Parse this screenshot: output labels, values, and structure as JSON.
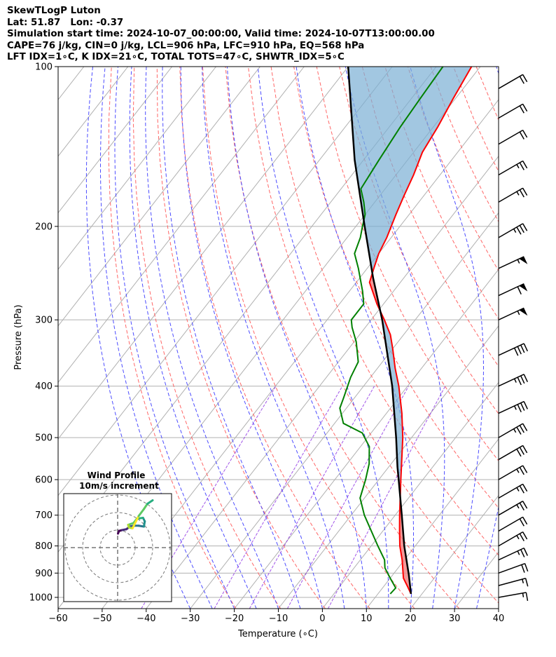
{
  "header": {
    "line1": "SkewTLogP Luton",
    "line2": "Lat: 51.87   Lon: -0.37",
    "line3": "Simulation start time: 2024-10-07_00:00:00, Valid time: 2024-10-07T13:00:00.00",
    "line4": "CAPE=76 j/kg, CIN=0 j/kg, LCL=906 hPa, LFC=910 hPa, EQ=568 hPa",
    "line5": "LFT IDX=1∘C, K IDX=21∘C, TOTAL TOTS=47∘C, SHWTR_IDX=5∘C"
  },
  "colors": {
    "temperature": "#ff0000",
    "dewpoint": "#008000",
    "parcel": "#000000",
    "cape_fill": "#7bafd4",
    "cin_fill": "#f08080",
    "dry_adiabat": "#ff6666",
    "moist_adiabat": "#4d4dff",
    "mixing_ratio": "#8a2be2",
    "isotherm": "#b0b0b0"
  },
  "chart_data": {
    "type": "skewt",
    "xlabel": "Temperature (∘C)",
    "ylabel": "Pressure (hPa)",
    "xlim": [
      -60,
      40
    ],
    "ylim": [
      1050,
      100
    ],
    "x_ticks": [
      "−60",
      "−50",
      "−40",
      "−30",
      "−20",
      "−10",
      "0",
      "10",
      "20",
      "30",
      "40"
    ],
    "y_ticks": [
      {
        "p": 100,
        "label": "100"
      },
      {
        "p": 200,
        "label": "200"
      },
      {
        "p": 300,
        "label": "300"
      },
      {
        "p": 400,
        "label": "400"
      },
      {
        "p": 500,
        "label": "500"
      },
      {
        "p": 600,
        "label": "600"
      },
      {
        "p": 700,
        "label": "700"
      },
      {
        "p": 800,
        "label": "800"
      },
      {
        "p": 900,
        "label": "900"
      },
      {
        "p": 1000,
        "label": "1000"
      }
    ],
    "grid": true,
    "temperature": [
      {
        "p": 985,
        "t": 17.5
      },
      {
        "p": 955,
        "t": 15.5
      },
      {
        "p": 920,
        "t": 13.0
      },
      {
        "p": 850,
        "t": 9.5
      },
      {
        "p": 800,
        "t": 6.5
      },
      {
        "p": 750,
        "t": 3.8
      },
      {
        "p": 700,
        "t": 1.0
      },
      {
        "p": 600,
        "t": -5.0
      },
      {
        "p": 500,
        "t": -12.0
      },
      {
        "p": 450,
        "t": -16.5
      },
      {
        "p": 400,
        "t": -22.0
      },
      {
        "p": 370,
        "t": -26.0
      },
      {
        "p": 340,
        "t": -30.0
      },
      {
        "p": 320,
        "t": -33.0
      },
      {
        "p": 300,
        "t": -37.0
      },
      {
        "p": 280,
        "t": -41.5
      },
      {
        "p": 255,
        "t": -47.0
      },
      {
        "p": 240,
        "t": -48.5
      },
      {
        "p": 225,
        "t": -50.0
      },
      {
        "p": 210,
        "t": -51.0
      },
      {
        "p": 190,
        "t": -53.0
      },
      {
        "p": 175,
        "t": -54.5
      },
      {
        "p": 160,
        "t": -56.0
      },
      {
        "p": 145,
        "t": -58.0
      },
      {
        "p": 130,
        "t": -59.0
      },
      {
        "p": 115,
        "t": -60.5
      },
      {
        "p": 100,
        "t": -62.0
      }
    ],
    "dewpoint": [
      {
        "p": 985,
        "t": 12.8
      },
      {
        "p": 960,
        "t": 13.0
      },
      {
        "p": 920,
        "t": 10.0
      },
      {
        "p": 880,
        "t": 7.0
      },
      {
        "p": 850,
        "t": 5.5
      },
      {
        "p": 800,
        "t": 1.5
      },
      {
        "p": 700,
        "t": -7.0
      },
      {
        "p": 650,
        "t": -11.0
      },
      {
        "p": 600,
        "t": -13.0
      },
      {
        "p": 560,
        "t": -15.0
      },
      {
        "p": 520,
        "t": -18.0
      },
      {
        "p": 490,
        "t": -22.0
      },
      {
        "p": 470,
        "t": -28.0
      },
      {
        "p": 440,
        "t": -31.5
      },
      {
        "p": 420,
        "t": -32.5
      },
      {
        "p": 385,
        "t": -34.5
      },
      {
        "p": 360,
        "t": -35.5
      },
      {
        "p": 330,
        "t": -39.5
      },
      {
        "p": 310,
        "t": -43.0
      },
      {
        "p": 300,
        "t": -44.5
      },
      {
        "p": 280,
        "t": -44.5
      },
      {
        "p": 265,
        "t": -47.0
      },
      {
        "p": 240,
        "t": -52.0
      },
      {
        "p": 225,
        "t": -55.5
      },
      {
        "p": 210,
        "t": -57.0
      },
      {
        "p": 200,
        "t": -58.5
      },
      {
        "p": 190,
        "t": -60.0
      },
      {
        "p": 180,
        "t": -62.5
      },
      {
        "p": 170,
        "t": -65.5
      },
      {
        "p": 150,
        "t": -66.5
      },
      {
        "p": 130,
        "t": -67.5
      },
      {
        "p": 115,
        "t": -68.0
      },
      {
        "p": 100,
        "t": -68.5
      }
    ],
    "parcel": [
      {
        "p": 985,
        "t": 17.5
      },
      {
        "p": 906,
        "t": 13.6
      },
      {
        "p": 800,
        "t": 7.5
      },
      {
        "p": 700,
        "t": 1.5
      },
      {
        "p": 600,
        "t": -5.5
      },
      {
        "p": 568,
        "t": -8.0
      },
      {
        "p": 500,
        "t": -13.5
      },
      {
        "p": 400,
        "t": -23.5
      },
      {
        "p": 300,
        "t": -37.5
      },
      {
        "p": 250,
        "t": -47.0
      },
      {
        "p": 200,
        "t": -58.0
      },
      {
        "p": 150,
        "t": -72.0
      },
      {
        "p": 100,
        "t": -90.0
      }
    ],
    "wind_barbs": [
      {
        "p": 1000,
        "dir": 260,
        "speed": 15
      },
      {
        "p": 950,
        "dir": 255,
        "speed": 15
      },
      {
        "p": 900,
        "dir": 250,
        "speed": 20
      },
      {
        "p": 850,
        "dir": 245,
        "speed": 25
      },
      {
        "p": 800,
        "dir": 240,
        "speed": 25
      },
      {
        "p": 750,
        "dir": 240,
        "speed": 20
      },
      {
        "p": 700,
        "dir": 240,
        "speed": 25
      },
      {
        "p": 650,
        "dir": 240,
        "speed": 25
      },
      {
        "p": 600,
        "dir": 240,
        "speed": 25
      },
      {
        "p": 550,
        "dir": 240,
        "speed": 30
      },
      {
        "p": 500,
        "dir": 240,
        "speed": 35
      },
      {
        "p": 450,
        "dir": 245,
        "speed": 35
      },
      {
        "p": 400,
        "dir": 245,
        "speed": 35
      },
      {
        "p": 350,
        "dir": 245,
        "speed": 40
      },
      {
        "p": 300,
        "dir": 245,
        "speed": 55
      },
      {
        "p": 270,
        "dir": 245,
        "speed": 60
      },
      {
        "p": 240,
        "dir": 245,
        "speed": 55
      },
      {
        "p": 210,
        "dir": 240,
        "speed": 35
      },
      {
        "p": 180,
        "dir": 240,
        "speed": 25
      },
      {
        "p": 160,
        "dir": 240,
        "speed": 25
      },
      {
        "p": 140,
        "dir": 240,
        "speed": 20
      },
      {
        "p": 125,
        "dir": 240,
        "speed": 20
      },
      {
        "p": 110,
        "dir": 240,
        "speed": 20
      }
    ],
    "hodograph": {
      "title": "Wind Profile",
      "subtitle": "10m/s increment",
      "rings": [
        10,
        20,
        30
      ],
      "points": [
        {
          "u": 0.2,
          "v": 8.0
        },
        {
          "u": 0.8,
          "v": 9.5
        },
        {
          "u": 2.5,
          "v": 10.0
        },
        {
          "u": 5.0,
          "v": 10.5
        },
        {
          "u": 7.0,
          "v": 12.0
        },
        {
          "u": 9.0,
          "v": 12.5
        },
        {
          "u": 12.0,
          "v": 12.5
        },
        {
          "u": 15.0,
          "v": 12.0
        },
        {
          "u": 15.5,
          "v": 15.0
        },
        {
          "u": 14.5,
          "v": 17.0
        },
        {
          "u": 11.0,
          "v": 16.5
        },
        {
          "u": 9.0,
          "v": 14.0
        },
        {
          "u": 6.0,
          "v": 13.0
        },
        {
          "u": 6.5,
          "v": 11.5
        },
        {
          "u": 8.5,
          "v": 11.0
        },
        {
          "u": 12.0,
          "v": 18.0
        },
        {
          "u": 15.0,
          "v": 22.0
        },
        {
          "u": 17.0,
          "v": 25.0
        },
        {
          "u": 20.0,
          "v": 27.0
        }
      ]
    }
  }
}
